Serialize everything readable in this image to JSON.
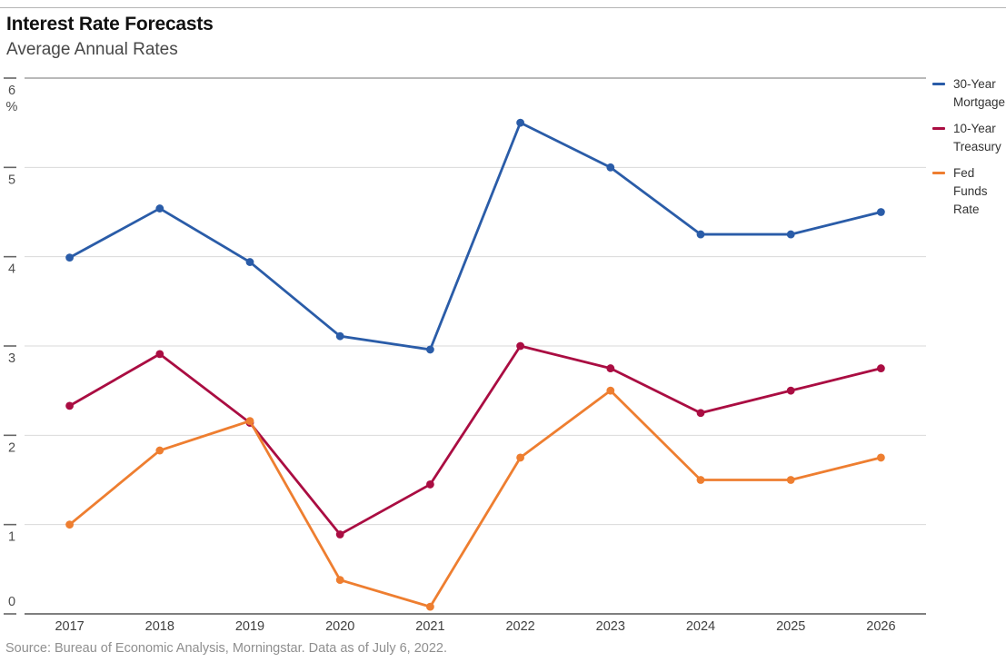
{
  "header": {
    "title": "Interest Rate Forecasts",
    "subtitle": "Average Annual Rates"
  },
  "source_text": "Source: Bureau of Economic Analysis, Morningstar. Data as of July 6, 2022.",
  "colors": {
    "mortgage_blue": "#2a5ca8",
    "treasury_red": "#aa0d42",
    "fed_funds_orange": "#ee7e30",
    "gridline": "#d9d9d9",
    "top_border": "#8f8f8f",
    "bottom_axis": "#555555",
    "tick": "#666666",
    "axis_text": "#4d4d4d"
  },
  "chart_data": {
    "type": "line",
    "title": "Interest Rate Forecasts",
    "subtitle": "Average Annual Rates",
    "x": [
      "2017",
      "2018",
      "2019",
      "2020",
      "2021",
      "2022",
      "2023",
      "2024",
      "2025",
      "2026"
    ],
    "xlabel": "",
    "ylabel": "%",
    "ylim": [
      0,
      6
    ],
    "yticks": [
      0,
      1,
      2,
      3,
      4,
      5,
      6
    ],
    "grid": "horizontal",
    "legend_position": "right",
    "series": [
      {
        "name": "30-Year Mortgage",
        "legend_lines": [
          "30-Year",
          "Mortgage"
        ],
        "color": "#2a5ca8",
        "values": [
          3.99,
          4.54,
          3.94,
          3.11,
          2.96,
          5.5,
          5.0,
          4.25,
          4.25,
          4.5
        ]
      },
      {
        "name": "10-Year Treasury",
        "legend_lines": [
          "10-Year",
          "Treasury"
        ],
        "color": "#aa0d42",
        "values": [
          2.33,
          2.91,
          2.14,
          0.89,
          1.45,
          3.0,
          2.75,
          2.25,
          2.5,
          2.75
        ]
      },
      {
        "name": "Fed Funds Rate",
        "legend_lines": [
          "Fed",
          "Funds",
          "Rate"
        ],
        "color": "#ee7e30",
        "values": [
          1.0,
          1.83,
          2.16,
          0.38,
          0.08,
          1.75,
          2.5,
          1.5,
          1.5,
          1.75
        ]
      }
    ]
  }
}
